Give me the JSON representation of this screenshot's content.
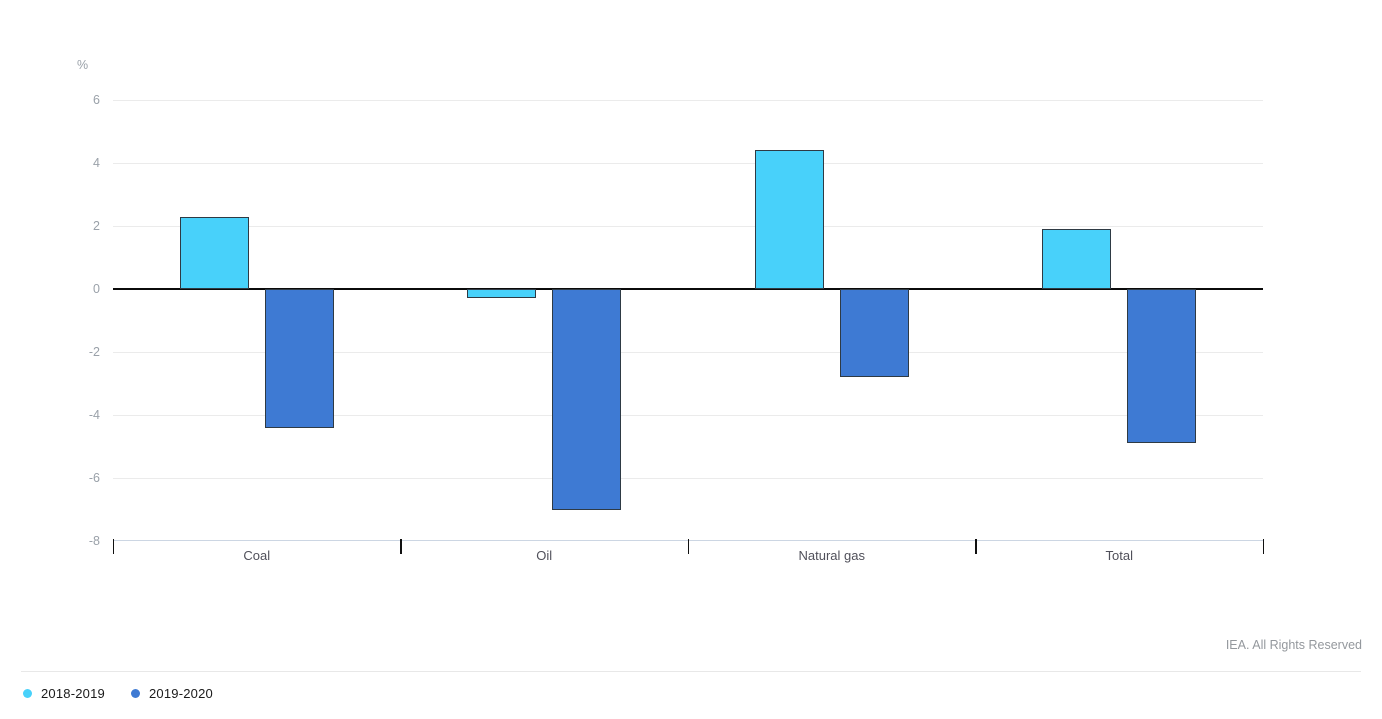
{
  "chart": {
    "unit_label": "%",
    "copyright": "IEA. All Rights Reserved",
    "background": "#ffffff",
    "bar_border_color": "#2e3a44",
    "gridline_color": "#ebebeb",
    "zero_line_color": "#0b0b0b",
    "bottom_axis_color": "#ccd6e3"
  },
  "chart_data": {
    "type": "bar",
    "categories": [
      "Coal",
      "Oil",
      "Natural gas",
      "Total"
    ],
    "series": [
      {
        "name": "2018-2019",
        "color": "#48d1fa",
        "values": [
          2.3,
          -0.3,
          4.4,
          1.9
        ]
      },
      {
        "name": "2019-2020",
        "color": "#3e7ad3",
        "values": [
          -4.4,
          -7.0,
          -2.8,
          -4.9
        ]
      }
    ],
    "title": "",
    "xlabel": "",
    "ylabel": "%",
    "ylim": [
      -8,
      6
    ],
    "yticks": [
      6,
      4,
      2,
      0,
      -2,
      -4,
      -6,
      -8
    ],
    "ytick_step": 2,
    "grid": true,
    "legend_position": "bottom-left"
  },
  "legend": {
    "items": [
      {
        "label": "2018-2019",
        "color": "#48d1fa"
      },
      {
        "label": "2019-2020",
        "color": "#3e7ad3"
      }
    ]
  }
}
